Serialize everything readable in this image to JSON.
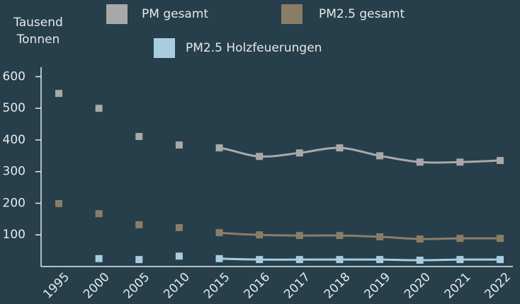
{
  "chart_data": {
    "type": "line",
    "y_label": [
      "Tausend",
      "Tonnen"
    ],
    "categories": [
      "1995",
      "2000",
      "2005",
      "2010",
      "2015",
      "2016",
      "2017",
      "2018",
      "2019",
      "2020",
      "2021",
      "2022"
    ],
    "line_start": "2015",
    "series": [
      {
        "name": "PM gesamt",
        "color": "#a9a9a9",
        "values": [
          547,
          500,
          411,
          384,
          375,
          348,
          359,
          375,
          350,
          330,
          330,
          335
        ]
      },
      {
        "name": "PM2.5 gesamt",
        "color": "#8a7d68",
        "values": [
          199,
          167,
          132,
          123,
          107,
          100,
          98,
          98,
          94,
          87,
          89,
          89
        ]
      },
      {
        "name": "PM2.5 Holzfeuerungen",
        "color": "#a9cde0",
        "values": [
          null,
          25,
          22,
          33,
          25,
          22,
          22,
          22,
          22,
          20,
          22,
          22
        ]
      }
    ],
    "ylim": [
      0,
      630
    ],
    "yticks": [
      100,
      200,
      300,
      400,
      500,
      600
    ],
    "grid": false
  }
}
